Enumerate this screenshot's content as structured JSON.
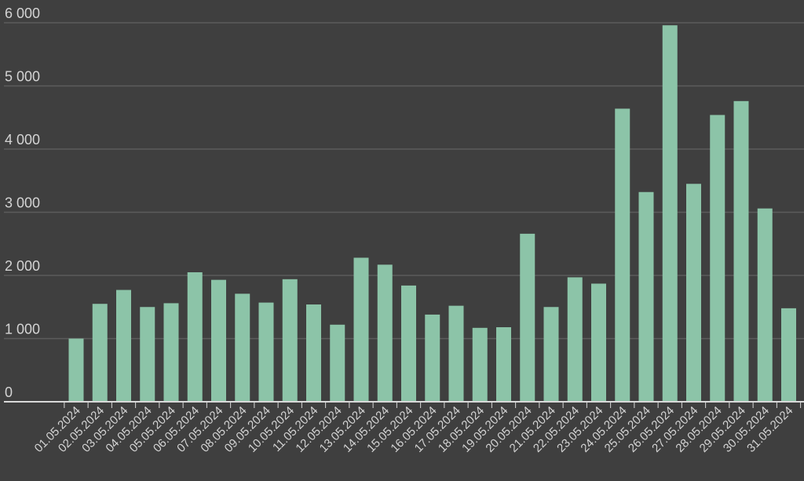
{
  "chart_data": {
    "type": "bar",
    "title": "",
    "xlabel": "",
    "ylabel": "",
    "ylim": [
      0,
      6000
    ],
    "y_ticks": [
      0,
      1000,
      2000,
      3000,
      4000,
      5000,
      6000
    ],
    "y_tick_labels": [
      "0",
      "1 000",
      "2 000",
      "3 000",
      "4 000",
      "5 000",
      "6 000"
    ],
    "grid": true,
    "bar_color": "#8cc4a8",
    "categories": [
      "01.05.2024",
      "02.05.2024",
      "03.05.2024",
      "04.05.2024",
      "05.05.2024",
      "06.05.2024",
      "07.05.2024",
      "08.05.2024",
      "09.05.2024",
      "10.05.2024",
      "11.05.2024",
      "12.05.2024",
      "13.05.2024",
      "14.05.2024",
      "15.05.2024",
      "16.05.2024",
      "17.05.2024",
      "18.05.2024",
      "19.05.2024",
      "20.05.2024",
      "21.05.2024",
      "22.05.2024",
      "23.05.2024",
      "24.05.2024",
      "25.05.2024",
      "26.05.2024",
      "27.05.2024",
      "28.05.2024",
      "29.05.2024",
      "30.05.2024",
      "31.05.2024"
    ],
    "values": [
      1000,
      1550,
      1770,
      1500,
      1560,
      2050,
      1930,
      1710,
      1570,
      1940,
      1540,
      1220,
      2280,
      2170,
      1840,
      1380,
      1520,
      1170,
      1180,
      2660,
      1500,
      1970,
      1870,
      4640,
      3320,
      5960,
      3450,
      4540,
      4760,
      3060,
      1480
    ]
  }
}
